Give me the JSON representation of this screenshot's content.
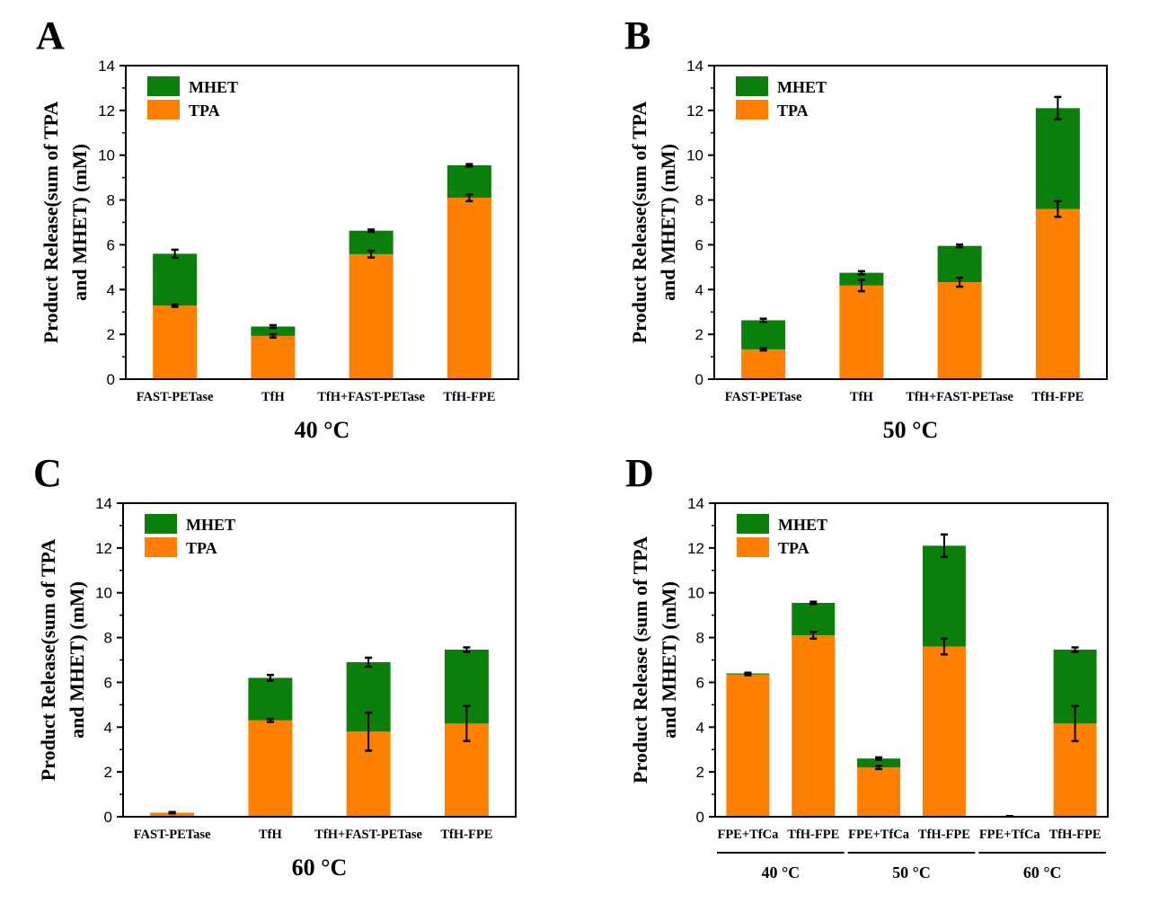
{
  "colors": {
    "tpa": "#FF8000",
    "mhet": "#0B7F0B",
    "axis": "#000000",
    "error": "#000000"
  },
  "chart_data": [
    {
      "type": "bar",
      "stacked": true,
      "panel_letter": "A",
      "xlabel": "40 °C",
      "ylabel_line1": "Product Release(sum of TPA",
      "ylabel_line2": "and MHET) (mM)",
      "ylim": [
        0,
        14
      ],
      "yticks": [
        "0",
        "2",
        "4",
        "6",
        "8",
        "10",
        "12",
        "14"
      ],
      "legend_position": "top-left",
      "categories": [
        "FAST-PETase",
        "TfH",
        "TfH+FAST-PETase",
        "TfH-FPE"
      ],
      "series": [
        {
          "name": "TPA",
          "values": [
            3.28,
            1.93,
            5.58,
            8.1
          ],
          "errors": [
            0.05,
            0.07,
            0.15,
            0.15
          ]
        },
        {
          "name": "MHET",
          "values": [
            2.32,
            0.42,
            1.05,
            1.45
          ],
          "errors": [
            0.18,
            0.06,
            0.05,
            0.05
          ]
        }
      ]
    },
    {
      "type": "bar",
      "stacked": true,
      "panel_letter": "B",
      "xlabel": "50 °C",
      "ylabel_line1": "Product Release(sum of TPA",
      "ylabel_line2": "and MHET) (mM)",
      "ylim": [
        0,
        14
      ],
      "yticks": [
        "0",
        "2",
        "4",
        "6",
        "8",
        "10",
        "12",
        "14"
      ],
      "legend_position": "top-left",
      "categories": [
        "FAST-PETase",
        "TfH",
        "TfH+FAST-PETase",
        "TfH-FPE"
      ],
      "series": [
        {
          "name": "TPA",
          "values": [
            1.33,
            4.18,
            4.33,
            7.6
          ],
          "errors": [
            0.05,
            0.25,
            0.2,
            0.35
          ]
        },
        {
          "name": "MHET",
          "values": [
            1.3,
            0.57,
            1.62,
            4.5
          ],
          "errors": [
            0.07,
            0.07,
            0.06,
            0.5
          ]
        }
      ]
    },
    {
      "type": "bar",
      "stacked": true,
      "panel_letter": "C",
      "xlabel": "60 °C",
      "ylabel_line1": "Product Release(sum of TPA",
      "ylabel_line2": "and MHET) (mM)",
      "ylim": [
        0,
        14
      ],
      "yticks": [
        "0",
        "2",
        "4",
        "6",
        "8",
        "10",
        "12",
        "14"
      ],
      "legend_position": "top-left",
      "categories": [
        "FAST-PETase",
        "TfH",
        "TfH+FAST-PETase",
        "TfH-FPE"
      ],
      "series": [
        {
          "name": "TPA",
          "values": [
            0.18,
            4.3,
            3.8,
            4.16
          ],
          "errors": [
            0.03,
            0.07,
            0.85,
            0.78
          ]
        },
        {
          "name": "MHET",
          "values": [
            0.0,
            1.9,
            3.1,
            3.3
          ],
          "errors": [
            0.0,
            0.13,
            0.2,
            0.1
          ]
        }
      ]
    },
    {
      "type": "bar",
      "stacked": true,
      "panel_letter": "D",
      "ylabel_line1": "Product Release (sum of TPA",
      "ylabel_line2": "and MHET) (mM)",
      "ylim": [
        0,
        14
      ],
      "yticks": [
        "0",
        "2",
        "4",
        "6",
        "8",
        "10",
        "12",
        "14"
      ],
      "legend_position": "top-left",
      "categories": [
        "FPE+TfCa",
        "TfH-FPE",
        "FPE+TfCa",
        "TfH-FPE",
        "FPE+TfCa",
        "TfH-FPE"
      ],
      "groups": [
        {
          "label": "40 °C",
          "categories": [
            0,
            1
          ]
        },
        {
          "label": "50 °C",
          "categories": [
            2,
            3
          ]
        },
        {
          "label": "60 °C",
          "categories": [
            4,
            5
          ]
        }
      ],
      "series": [
        {
          "name": "TPA",
          "values": [
            6.35,
            8.1,
            2.2,
            7.6,
            0.0,
            4.16
          ],
          "errors": [
            0.03,
            0.15,
            0.07,
            0.35,
            0.0,
            0.78
          ]
        },
        {
          "name": "MHET",
          "values": [
            0.05,
            1.45,
            0.4,
            4.5,
            0.0,
            3.3
          ],
          "errors": [
            0.03,
            0.05,
            0.05,
            0.5,
            0.02,
            0.1
          ]
        }
      ]
    }
  ]
}
